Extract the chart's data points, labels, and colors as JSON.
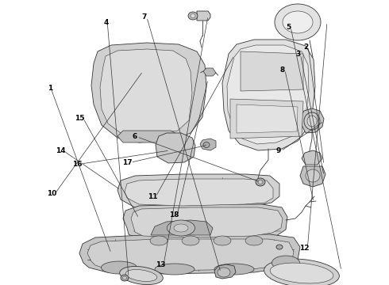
{
  "background_color": "#ffffff",
  "line_color": "#333333",
  "fill_light": "#d8d8d8",
  "fill_mid": "#c0c0c0",
  "fill_dark": "#aaaaaa",
  "fig_width": 4.9,
  "fig_height": 3.6,
  "dpi": 100,
  "label_fontsize": 6.5,
  "label_positions": {
    "1": [
      0.135,
      0.31,
      "right"
    ],
    "2": [
      0.78,
      0.165,
      "left"
    ],
    "3": [
      0.76,
      0.19,
      "left"
    ],
    "4": [
      0.28,
      0.078,
      "right"
    ],
    "5": [
      0.735,
      0.095,
      "left"
    ],
    "6": [
      0.34,
      0.48,
      "left"
    ],
    "7": [
      0.365,
      0.06,
      "left"
    ],
    "8": [
      0.72,
      0.245,
      "left"
    ],
    "9": [
      0.71,
      0.53,
      "left"
    ],
    "10": [
      0.145,
      0.68,
      "right"
    ],
    "11": [
      0.38,
      0.69,
      "left"
    ],
    "12": [
      0.77,
      0.87,
      "left"
    ],
    "13": [
      0.4,
      0.93,
      "left"
    ],
    "14": [
      0.168,
      0.53,
      "right"
    ],
    "15": [
      0.218,
      0.415,
      "right"
    ],
    "16": [
      0.212,
      0.575,
      "right"
    ],
    "17": [
      0.315,
      0.57,
      "left"
    ],
    "18": [
      0.435,
      0.755,
      "left"
    ]
  }
}
